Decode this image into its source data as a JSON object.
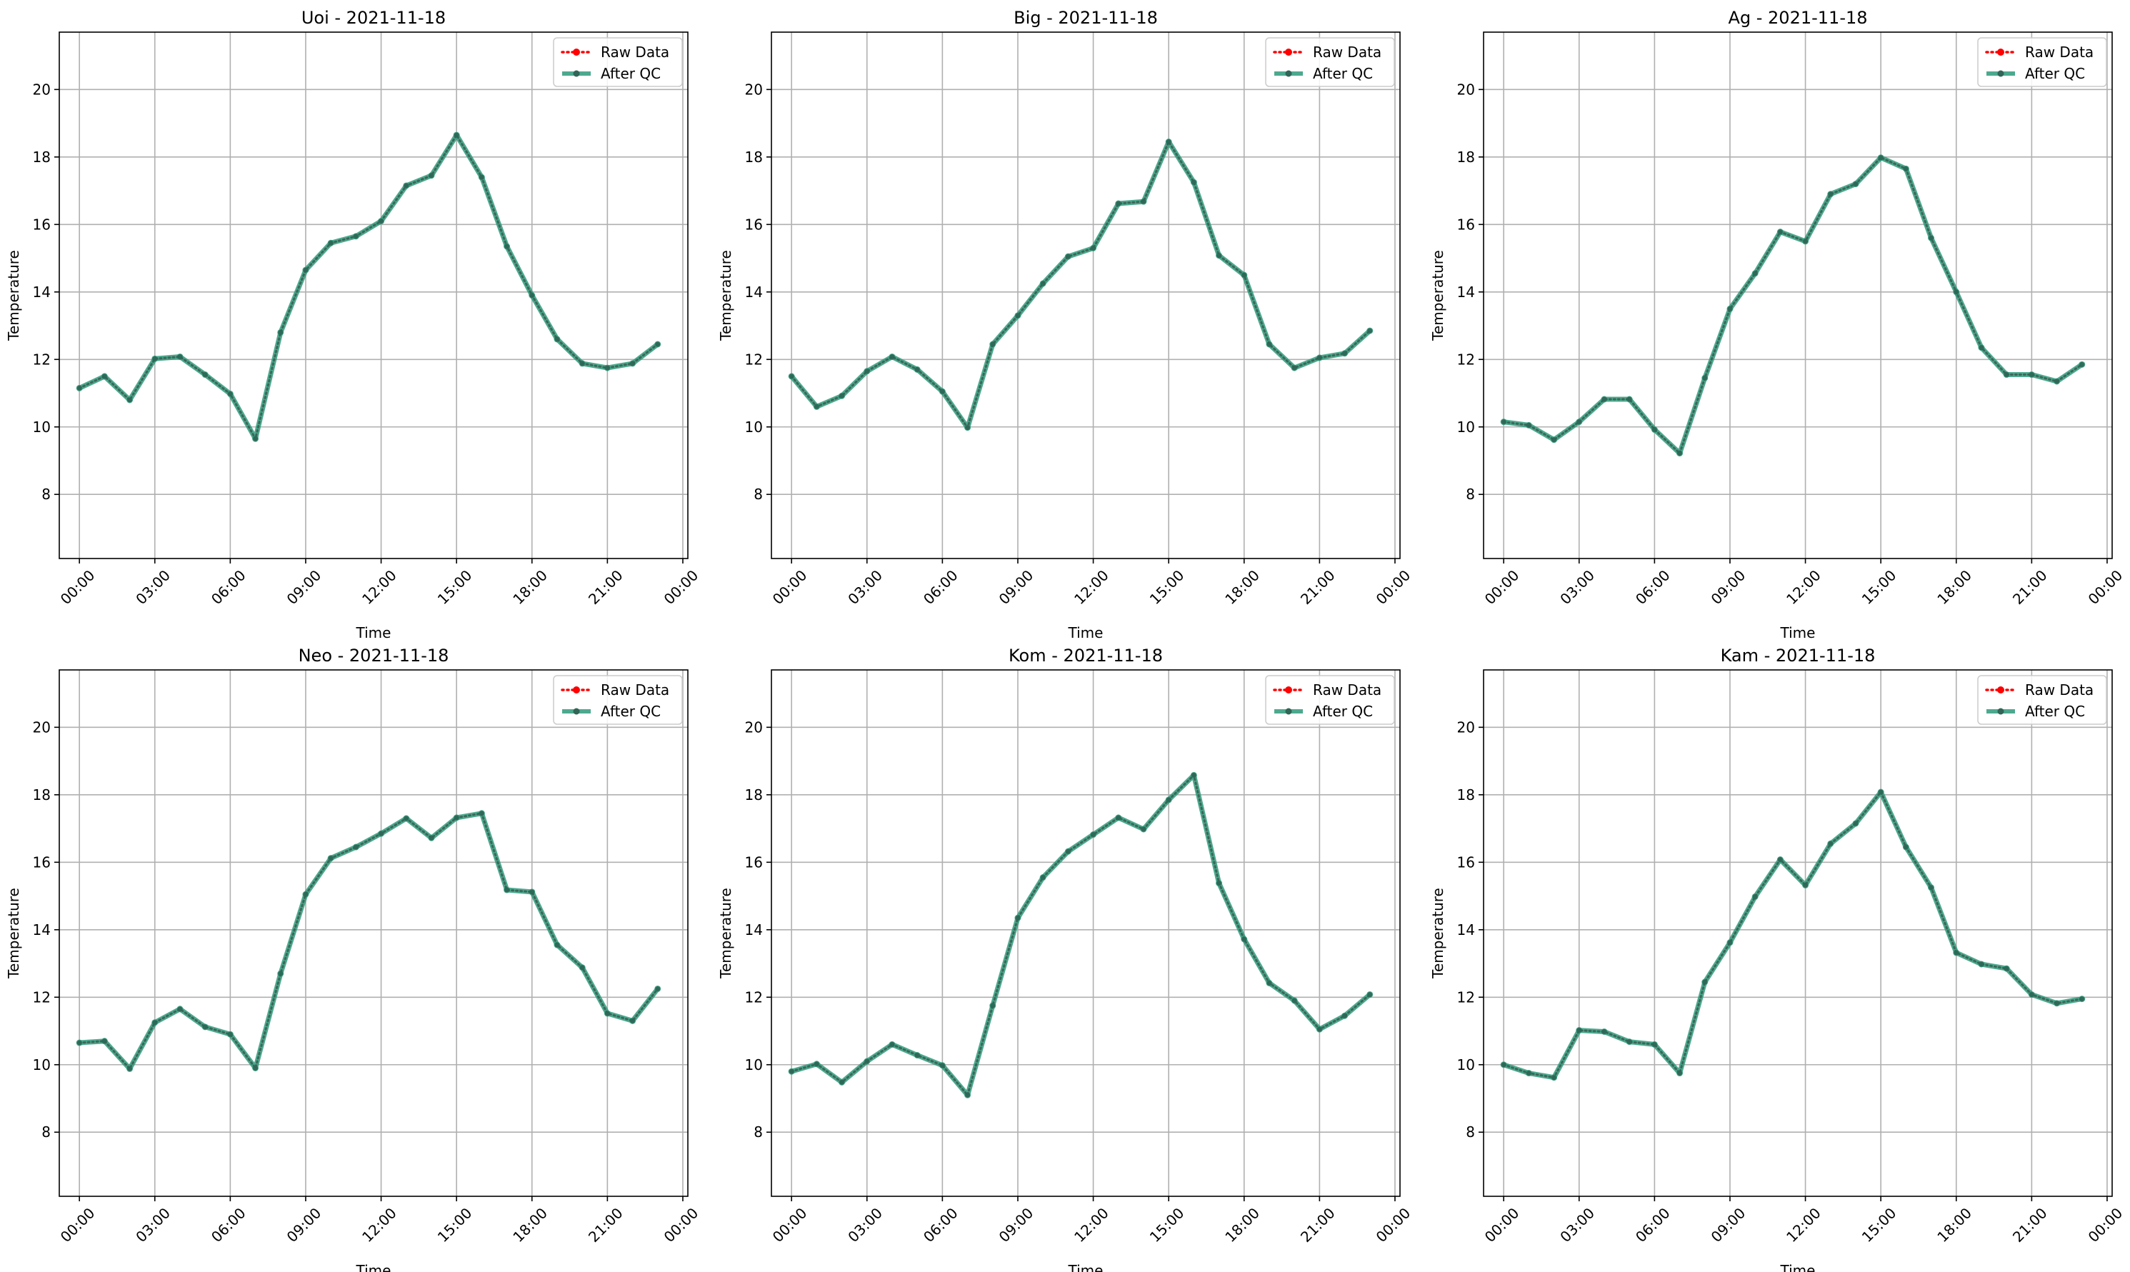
{
  "chart_data": [
    {
      "type": "line",
      "title": "Uoi - 2021-11-18",
      "xlabel": "Time",
      "ylabel": "Temperature",
      "xlim": [
        -0.8,
        24.2
      ],
      "ylim": [
        6.1,
        21.7
      ],
      "x_ticks": [
        0,
        3,
        6,
        9,
        12,
        15,
        18,
        21,
        24
      ],
      "x_tick_labels": [
        "00:00",
        "03:00",
        "06:00",
        "09:00",
        "12:00",
        "15:00",
        "18:00",
        "21:00",
        "00:00"
      ],
      "y_ticks": [
        8,
        10,
        12,
        14,
        16,
        18,
        20
      ],
      "y_tick_labels": [
        "8",
        "10",
        "12",
        "14",
        "16",
        "18",
        "20"
      ],
      "grid": true,
      "legend": "top-right",
      "x": [
        0,
        1,
        2,
        3,
        4,
        5,
        6,
        7,
        8,
        9,
        10,
        11,
        12,
        13,
        14,
        15,
        16,
        17,
        18,
        19,
        20,
        21,
        22,
        23
      ],
      "series": [
        {
          "name": "Raw Data",
          "color": "#ff0000",
          "style": "dotted",
          "values": [
            11.15,
            11.5,
            10.8,
            12.02,
            12.08,
            11.55,
            10.98,
            9.65,
            12.8,
            14.65,
            15.45,
            15.65,
            16.1,
            17.15,
            17.45,
            18.65,
            17.4,
            15.35,
            13.9,
            12.6,
            11.88,
            11.75,
            11.88,
            12.45
          ]
        },
        {
          "name": "After QC",
          "color": "#2e9a7a",
          "style": "solid",
          "values": [
            11.15,
            11.5,
            10.8,
            12.02,
            12.08,
            11.55,
            10.98,
            9.65,
            12.8,
            14.65,
            15.45,
            15.65,
            16.1,
            17.15,
            17.45,
            18.65,
            17.4,
            15.35,
            13.9,
            12.6,
            11.88,
            11.75,
            11.88,
            12.45
          ]
        }
      ]
    },
    {
      "type": "line",
      "title": "Big - 2021-11-18",
      "xlabel": "Time",
      "ylabel": "Temperature",
      "xlim": [
        -0.8,
        24.2
      ],
      "ylim": [
        6.1,
        21.7
      ],
      "x_ticks": [
        0,
        3,
        6,
        9,
        12,
        15,
        18,
        21,
        24
      ],
      "x_tick_labels": [
        "00:00",
        "03:00",
        "06:00",
        "09:00",
        "12:00",
        "15:00",
        "18:00",
        "21:00",
        "00:00"
      ],
      "y_ticks": [
        8,
        10,
        12,
        14,
        16,
        18,
        20
      ],
      "y_tick_labels": [
        "8",
        "10",
        "12",
        "14",
        "16",
        "18",
        "20"
      ],
      "grid": true,
      "legend": "top-right",
      "x": [
        0,
        1,
        2,
        3,
        4,
        5,
        6,
        7,
        8,
        9,
        10,
        11,
        12,
        13,
        14,
        15,
        16,
        17,
        18,
        19,
        20,
        21,
        22,
        23
      ],
      "series": [
        {
          "name": "Raw Data",
          "color": "#ff0000",
          "style": "dotted",
          "values": [
            11.5,
            10.6,
            10.92,
            11.65,
            12.08,
            11.7,
            11.05,
            9.98,
            12.45,
            13.3,
            14.25,
            15.05,
            15.3,
            16.62,
            16.68,
            18.45,
            17.25,
            15.08,
            14.5,
            12.45,
            11.75,
            12.05,
            12.18,
            12.85
          ]
        },
        {
          "name": "After QC",
          "color": "#2e9a7a",
          "style": "solid",
          "values": [
            11.5,
            10.6,
            10.92,
            11.65,
            12.08,
            11.7,
            11.05,
            9.98,
            12.45,
            13.3,
            14.25,
            15.05,
            15.3,
            16.62,
            16.68,
            18.45,
            17.25,
            15.08,
            14.5,
            12.45,
            11.75,
            12.05,
            12.18,
            12.85
          ]
        }
      ]
    },
    {
      "type": "line",
      "title": "Ag - 2021-11-18",
      "xlabel": "Time",
      "ylabel": "Temperature",
      "xlim": [
        -0.8,
        24.2
      ],
      "ylim": [
        6.1,
        21.7
      ],
      "x_ticks": [
        0,
        3,
        6,
        9,
        12,
        15,
        18,
        21,
        24
      ],
      "x_tick_labels": [
        "00:00",
        "03:00",
        "06:00",
        "09:00",
        "12:00",
        "15:00",
        "18:00",
        "21:00",
        "00:00"
      ],
      "y_ticks": [
        8,
        10,
        12,
        14,
        16,
        18,
        20
      ],
      "y_tick_labels": [
        "8",
        "10",
        "12",
        "14",
        "16",
        "18",
        "20"
      ],
      "grid": true,
      "legend": "top-right",
      "x": [
        0,
        1,
        2,
        3,
        4,
        5,
        6,
        7,
        8,
        9,
        10,
        11,
        12,
        13,
        14,
        15,
        16,
        17,
        18,
        19,
        20,
        21,
        22,
        23
      ],
      "series": [
        {
          "name": "Raw Data",
          "color": "#ff0000",
          "style": "dotted",
          "values": [
            10.15,
            10.05,
            9.62,
            10.15,
            10.82,
            10.82,
            9.92,
            9.22,
            11.45,
            13.5,
            14.55,
            15.78,
            15.5,
            16.9,
            17.2,
            17.98,
            17.65,
            15.6,
            14.0,
            12.35,
            11.55,
            11.55,
            11.35,
            11.85
          ]
        },
        {
          "name": "After QC",
          "color": "#2e9a7a",
          "style": "solid",
          "values": [
            10.15,
            10.05,
            9.62,
            10.15,
            10.82,
            10.82,
            9.92,
            9.22,
            11.45,
            13.5,
            14.55,
            15.78,
            15.5,
            16.9,
            17.2,
            17.98,
            17.65,
            15.6,
            14.0,
            12.35,
            11.55,
            11.55,
            11.35,
            11.85
          ]
        }
      ]
    },
    {
      "type": "line",
      "title": "Neo - 2021-11-18",
      "xlabel": "Time",
      "ylabel": "Temperature",
      "xlim": [
        -0.8,
        24.2
      ],
      "ylim": [
        6.1,
        21.7
      ],
      "x_ticks": [
        0,
        3,
        6,
        9,
        12,
        15,
        18,
        21,
        24
      ],
      "x_tick_labels": [
        "00:00",
        "03:00",
        "06:00",
        "09:00",
        "12:00",
        "15:00",
        "18:00",
        "21:00",
        "00:00"
      ],
      "y_ticks": [
        8,
        10,
        12,
        14,
        16,
        18,
        20
      ],
      "y_tick_labels": [
        "8",
        "10",
        "12",
        "14",
        "16",
        "18",
        "20"
      ],
      "grid": true,
      "legend": "top-right",
      "x": [
        0,
        1,
        2,
        3,
        4,
        5,
        6,
        7,
        8,
        9,
        10,
        11,
        12,
        13,
        14,
        15,
        16,
        17,
        18,
        19,
        20,
        21,
        22,
        23
      ],
      "series": [
        {
          "name": "Raw Data",
          "color": "#ff0000",
          "style": "dotted",
          "values": [
            10.65,
            10.7,
            9.88,
            11.25,
            11.65,
            11.12,
            10.9,
            9.9,
            12.7,
            15.05,
            16.12,
            16.45,
            16.85,
            17.3,
            16.72,
            17.32,
            17.45,
            15.18,
            15.12,
            13.55,
            12.88,
            11.52,
            11.3,
            12.25
          ]
        },
        {
          "name": "After QC",
          "color": "#2e9a7a",
          "style": "solid",
          "values": [
            10.65,
            10.7,
            9.88,
            11.25,
            11.65,
            11.12,
            10.9,
            9.9,
            12.7,
            15.05,
            16.12,
            16.45,
            16.85,
            17.3,
            16.72,
            17.32,
            17.45,
            15.18,
            15.12,
            13.55,
            12.88,
            11.52,
            11.3,
            12.25
          ]
        }
      ]
    },
    {
      "type": "line",
      "title": "Kom - 2021-11-18",
      "xlabel": "Time",
      "ylabel": "Temperature",
      "xlim": [
        -0.8,
        24.2
      ],
      "ylim": [
        6.1,
        21.7
      ],
      "x_ticks": [
        0,
        3,
        6,
        9,
        12,
        15,
        18,
        21,
        24
      ],
      "x_tick_labels": [
        "00:00",
        "03:00",
        "06:00",
        "09:00",
        "12:00",
        "15:00",
        "18:00",
        "21:00",
        "00:00"
      ],
      "y_ticks": [
        8,
        10,
        12,
        14,
        16,
        18,
        20
      ],
      "y_tick_labels": [
        "8",
        "10",
        "12",
        "14",
        "16",
        "18",
        "20"
      ],
      "grid": true,
      "legend": "top-right",
      "x": [
        0,
        1,
        2,
        3,
        4,
        5,
        6,
        7,
        8,
        9,
        10,
        11,
        12,
        13,
        14,
        15,
        16,
        17,
        18,
        19,
        20,
        21,
        22,
        23
      ],
      "series": [
        {
          "name": "Raw Data",
          "color": "#ff0000",
          "style": "dotted",
          "values": [
            9.8,
            10.02,
            9.48,
            10.1,
            10.6,
            10.28,
            9.98,
            9.1,
            11.75,
            14.35,
            15.55,
            16.32,
            16.82,
            17.32,
            16.98,
            17.85,
            18.58,
            15.38,
            13.72,
            12.42,
            11.9,
            11.05,
            11.45,
            12.08
          ]
        },
        {
          "name": "After QC",
          "color": "#2e9a7a",
          "style": "solid",
          "values": [
            9.8,
            10.02,
            9.48,
            10.1,
            10.6,
            10.28,
            9.98,
            9.1,
            11.75,
            14.35,
            15.55,
            16.32,
            16.82,
            17.32,
            16.98,
            17.85,
            18.58,
            15.38,
            13.72,
            12.42,
            11.9,
            11.05,
            11.45,
            12.08
          ]
        }
      ]
    },
    {
      "type": "line",
      "title": "Kam - 2021-11-18",
      "xlabel": "Time",
      "ylabel": "Temperature",
      "xlim": [
        -0.8,
        24.2
      ],
      "ylim": [
        6.1,
        21.7
      ],
      "x_ticks": [
        0,
        3,
        6,
        9,
        12,
        15,
        18,
        21,
        24
      ],
      "x_tick_labels": [
        "00:00",
        "03:00",
        "06:00",
        "09:00",
        "12:00",
        "15:00",
        "18:00",
        "21:00",
        "00:00"
      ],
      "y_ticks": [
        8,
        10,
        12,
        14,
        16,
        18,
        20
      ],
      "y_tick_labels": [
        "8",
        "10",
        "12",
        "14",
        "16",
        "18",
        "20"
      ],
      "grid": true,
      "legend": "top-right",
      "x": [
        0,
        1,
        2,
        3,
        4,
        5,
        6,
        7,
        8,
        9,
        10,
        11,
        12,
        13,
        14,
        15,
        16,
        17,
        18,
        19,
        20,
        21,
        22,
        23
      ],
      "series": [
        {
          "name": "Raw Data",
          "color": "#ff0000",
          "style": "dotted",
          "values": [
            10.0,
            9.75,
            9.62,
            11.02,
            10.98,
            10.68,
            10.6,
            9.75,
            12.45,
            13.62,
            14.98,
            16.08,
            15.32,
            16.55,
            17.15,
            18.08,
            16.45,
            15.25,
            13.32,
            12.98,
            12.85,
            12.08,
            11.82,
            11.95
          ]
        },
        {
          "name": "After QC",
          "color": "#2e9a7a",
          "style": "solid",
          "values": [
            10.0,
            9.75,
            9.62,
            11.02,
            10.98,
            10.68,
            10.6,
            9.75,
            12.45,
            13.62,
            14.98,
            16.08,
            15.32,
            16.55,
            17.15,
            18.08,
            16.45,
            15.25,
            13.32,
            12.98,
            12.85,
            12.08,
            11.82,
            11.95
          ]
        }
      ]
    }
  ]
}
